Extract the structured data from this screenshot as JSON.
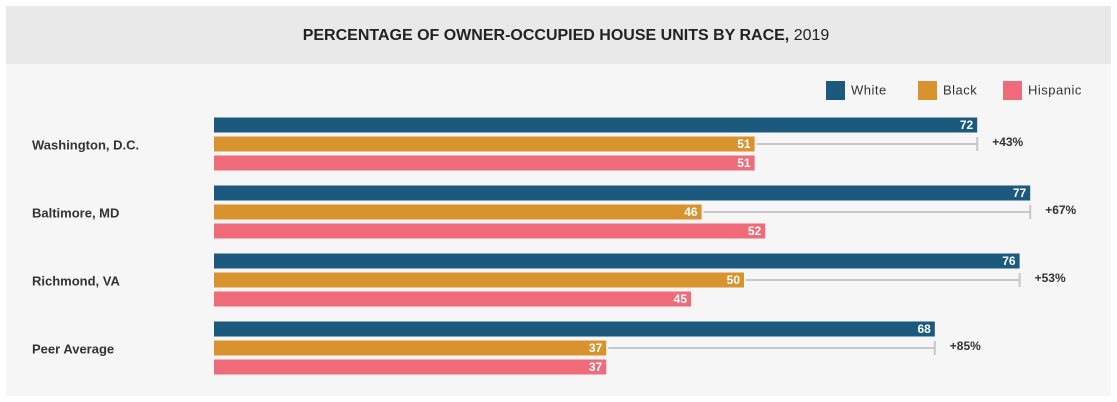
{
  "chart_data": {
    "type": "bar",
    "orientation": "horizontal",
    "title": "PERCENTAGE OF OWNER-OCCUPIED HOUSE UNITS BY RACE,",
    "title_year": "2019",
    "categories": [
      "Washington, D.C.",
      "Baltimore, MD",
      "Richmond, VA",
      "Peer Average"
    ],
    "series": [
      {
        "name": "White",
        "color": "#1b5a7e",
        "values": [
          72,
          77,
          76,
          68
        ]
      },
      {
        "name": "Black",
        "color": "#d8922e",
        "values": [
          51,
          46,
          50,
          37
        ]
      },
      {
        "name": "Hispanic",
        "color": "#ef6b7a",
        "values": [
          51,
          52,
          45,
          37
        ]
      }
    ],
    "gap_labels": [
      "+43%",
      "+67%",
      "+53%",
      "+85%"
    ],
    "legend": "top-right"
  }
}
